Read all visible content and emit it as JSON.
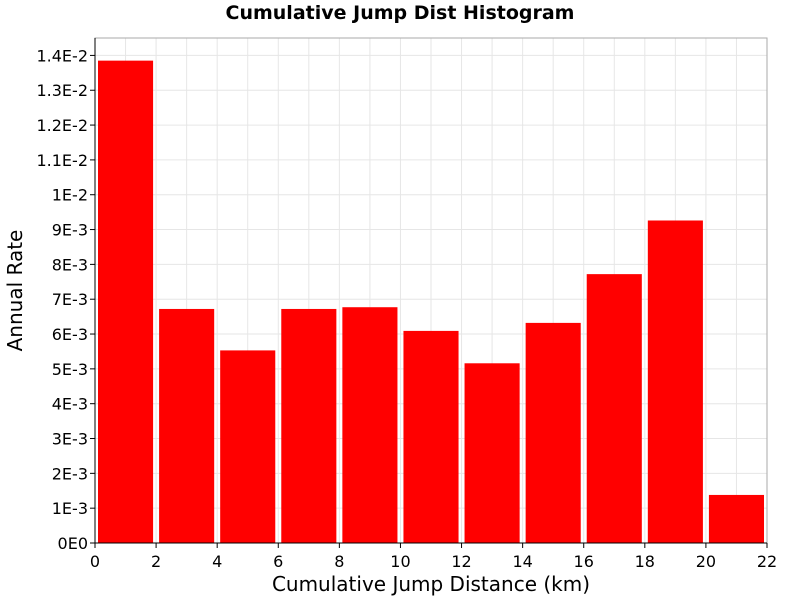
{
  "chart_data": {
    "type": "bar",
    "title": "Cumulative Jump Dist Histogram",
    "xlabel": "Cumulative Jump Distance (km)",
    "ylabel": "Annual Rate",
    "xlim": [
      0,
      22
    ],
    "ylim": [
      0,
      0.0145
    ],
    "x_ticks": [
      0,
      2,
      4,
      6,
      8,
      10,
      12,
      14,
      16,
      18,
      20,
      22
    ],
    "x_tick_labels": [
      "0",
      "2",
      "4",
      "6",
      "8",
      "10",
      "12",
      "14",
      "16",
      "18",
      "20",
      "22"
    ],
    "y_ticks": [
      0,
      0.001,
      0.002,
      0.003,
      0.004,
      0.005,
      0.006,
      0.007,
      0.008,
      0.009,
      0.01,
      0.011,
      0.012,
      0.013,
      0.014
    ],
    "y_tick_labels": [
      "0E0",
      "1E-3",
      "2E-3",
      "3E-3",
      "4E-3",
      "5E-3",
      "6E-3",
      "7E-3",
      "8E-3",
      "9E-3",
      "1E-2",
      "1.1E-2",
      "1.2E-2",
      "1.3E-2",
      "1.4E-2"
    ],
    "bins": [
      {
        "x_start": 0,
        "x_end": 2,
        "value": 0.01385
      },
      {
        "x_start": 2,
        "x_end": 4,
        "value": 0.00672
      },
      {
        "x_start": 4,
        "x_end": 6,
        "value": 0.00553
      },
      {
        "x_start": 6,
        "x_end": 8,
        "value": 0.00672
      },
      {
        "x_start": 8,
        "x_end": 10,
        "value": 0.00677
      },
      {
        "x_start": 10,
        "x_end": 12,
        "value": 0.00609
      },
      {
        "x_start": 12,
        "x_end": 14,
        "value": 0.00516
      },
      {
        "x_start": 14,
        "x_end": 16,
        "value": 0.00632
      },
      {
        "x_start": 16,
        "x_end": 18,
        "value": 0.00772
      },
      {
        "x_start": 18,
        "x_end": 20,
        "value": 0.00926
      },
      {
        "x_start": 20,
        "x_end": 22,
        "value": 0.00138
      }
    ],
    "bar_color": "#ff0000",
    "grid": true,
    "grid_color": "#e6e6e6",
    "frame_color": "#aaaaaa",
    "legend": "none"
  }
}
